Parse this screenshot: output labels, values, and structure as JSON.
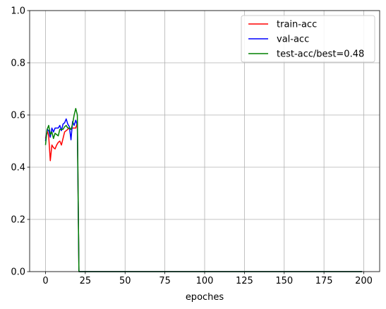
{
  "chart_data": {
    "type": "line",
    "xlabel": "epoches",
    "ylabel": "",
    "xlim": [
      -9.975,
      209.975
    ],
    "ylim": [
      0,
      1
    ],
    "xticks": [
      0,
      25,
      50,
      75,
      100,
      125,
      150,
      175,
      200
    ],
    "yticks": [
      0.0,
      0.2,
      0.4,
      0.6,
      0.8,
      1.0
    ],
    "xtick_labels": [
      "0",
      "25",
      "50",
      "75",
      "100",
      "125",
      "150",
      "175",
      "200"
    ],
    "ytick_labels": [
      "0.0",
      "0.2",
      "0.4",
      "0.6",
      "0.8",
      "1.0"
    ],
    "grid": true,
    "legend_position": "top-right",
    "x": [
      0,
      1,
      2,
      3,
      4,
      5,
      6,
      7,
      8,
      9,
      10,
      11,
      12,
      13,
      14,
      15,
      16,
      17,
      18,
      19,
      20,
      21,
      199
    ],
    "series": [
      {
        "name": "train-acc",
        "color": "#ff0000",
        "values": [
          0.51,
          0.54,
          0.52,
          0.425,
          0.485,
          0.475,
          0.47,
          0.485,
          0.495,
          0.5,
          0.485,
          0.51,
          0.535,
          0.54,
          0.545,
          0.55,
          0.545,
          0.55,
          0.55,
          0.55,
          0.57,
          0.0,
          0.0
        ]
      },
      {
        "name": "val-acc",
        "color": "#0000ff",
        "values": [
          0.5,
          0.545,
          0.54,
          0.515,
          0.55,
          0.535,
          0.55,
          0.55,
          0.55,
          0.56,
          0.54,
          0.565,
          0.57,
          0.585,
          0.565,
          0.555,
          0.505,
          0.575,
          0.56,
          0.58,
          0.56,
          0.0,
          0.0
        ]
      },
      {
        "name": "test-acc/best=0.48",
        "color": "#008000",
        "values": [
          0.485,
          0.545,
          0.56,
          0.525,
          0.535,
          0.51,
          0.53,
          0.525,
          0.52,
          0.545,
          0.545,
          0.545,
          0.555,
          0.56,
          0.55,
          0.55,
          0.545,
          0.565,
          0.6,
          0.625,
          0.6,
          0.0,
          0.0
        ]
      }
    ]
  }
}
